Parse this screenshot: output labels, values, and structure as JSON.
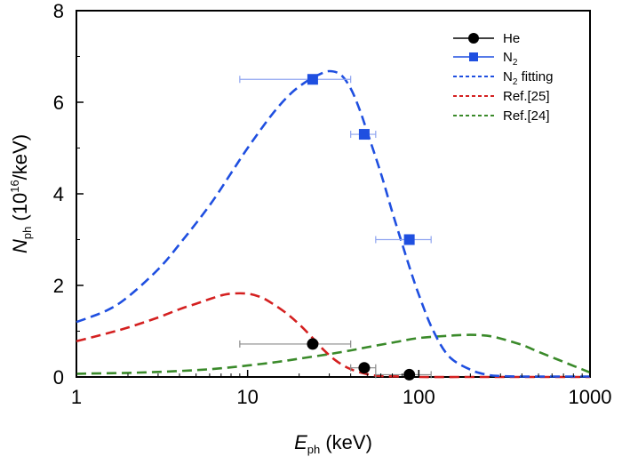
{
  "chart_data": {
    "type": "scatter",
    "xscale": "log",
    "xlim": [
      1,
      1000
    ],
    "ylim": [
      0,
      8
    ],
    "xticks": [
      1,
      10,
      100,
      1000
    ],
    "xtick_labels": [
      "1",
      "10",
      "100",
      "1000"
    ],
    "yticks": [
      0,
      2,
      4,
      6,
      8
    ],
    "ytick_labels": [
      "0",
      "2",
      "4",
      "6",
      "8"
    ],
    "xlabel": {
      "main": "E",
      "sub": "ph",
      "rest": " (keV)"
    },
    "ylabel": {
      "main": "N",
      "sub": "ph",
      "mid": "  (10",
      "sup": "16",
      "rest": "/keV)"
    },
    "grid": false,
    "legend_position": "top-right",
    "colors": {
      "he": "#000000",
      "n2": "#1f4fe0",
      "n2_fit": "#1f4fe0",
      "ref25": "#d42020",
      "ref24": "#3a8a2a",
      "errorbar_he": "#8a8a8a",
      "errorbar_n2": "#8fa4f0"
    },
    "series": [
      {
        "key": "he",
        "name": "He",
        "kind": "points",
        "marker": "circle",
        "points": [
          {
            "x": 24,
            "y": 0.72,
            "xerr_low": 9,
            "xerr_high": 40
          },
          {
            "x": 48,
            "y": 0.2,
            "xerr_low": 40,
            "xerr_high": 56
          },
          {
            "x": 88,
            "y": 0.05,
            "xerr_low": 56,
            "xerr_high": 118
          }
        ]
      },
      {
        "key": "n2",
        "name": {
          "main": "N",
          "sub": "2",
          "rest": ""
        },
        "kind": "points",
        "marker": "square",
        "points": [
          {
            "x": 24,
            "y": 6.5,
            "xerr_low": 9,
            "xerr_high": 40
          },
          {
            "x": 48,
            "y": 5.3,
            "xerr_low": 40,
            "xerr_high": 56
          },
          {
            "x": 88,
            "y": 3.0,
            "xerr_low": 56,
            "xerr_high": 118
          }
        ]
      },
      {
        "key": "n2_fit",
        "name": {
          "main": "N",
          "sub": "2",
          "rest": " fitting"
        },
        "kind": "dashed-line",
        "x": [
          1,
          1.5,
          2,
          3,
          4,
          6,
          8,
          10,
          14,
          18,
          22,
          26,
          30,
          35,
          40,
          45,
          50,
          60,
          70,
          80,
          90,
          100,
          120,
          150,
          200,
          250,
          300,
          400,
          600,
          1000
        ],
        "y": [
          1.2,
          1.45,
          1.75,
          2.35,
          2.9,
          3.75,
          4.45,
          5.0,
          5.75,
          6.2,
          6.45,
          6.6,
          6.68,
          6.6,
          6.3,
          5.85,
          5.35,
          4.45,
          3.6,
          2.9,
          2.3,
          1.8,
          1.05,
          0.45,
          0.16,
          0.05,
          0.02,
          0.01,
          0.01,
          0.01
        ]
      },
      {
        "key": "ref25",
        "name": "Ref.[25]",
        "kind": "dashed-line",
        "x": [
          1,
          1.5,
          2,
          3,
          4,
          5,
          6,
          7,
          8,
          10,
          12,
          14,
          17,
          20,
          24,
          28,
          33,
          40,
          50,
          60,
          80,
          100,
          200,
          400,
          1000
        ],
        "y": [
          0.78,
          0.95,
          1.08,
          1.3,
          1.48,
          1.6,
          1.7,
          1.78,
          1.82,
          1.82,
          1.74,
          1.6,
          1.38,
          1.15,
          0.85,
          0.58,
          0.35,
          0.17,
          0.06,
          0.02,
          0.01,
          0.0,
          0.0,
          0.0,
          0.0
        ]
      },
      {
        "key": "ref24",
        "name": "Ref.[24]",
        "kind": "dashed-line",
        "x": [
          1,
          2,
          3,
          5,
          7,
          10,
          15,
          20,
          30,
          40,
          50,
          70,
          100,
          150,
          200,
          250,
          300,
          400,
          500,
          700,
          1000
        ],
        "y": [
          0.07,
          0.09,
          0.11,
          0.15,
          0.19,
          0.25,
          0.33,
          0.4,
          0.5,
          0.58,
          0.65,
          0.75,
          0.85,
          0.9,
          0.92,
          0.9,
          0.84,
          0.7,
          0.55,
          0.33,
          0.1
        ]
      }
    ]
  }
}
